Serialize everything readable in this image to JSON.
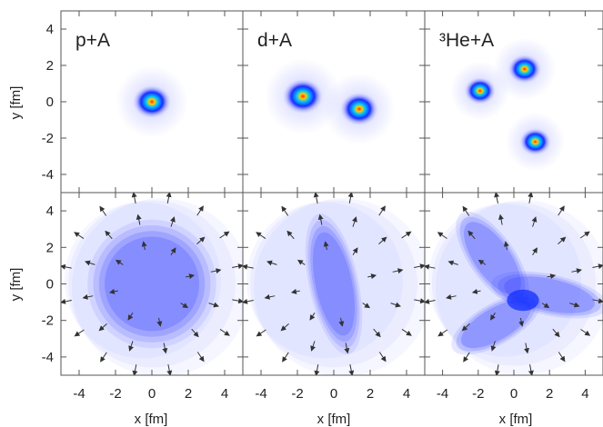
{
  "figure": {
    "shared": {
      "xlabel": "x [fm]",
      "ylabel": "y [fm]",
      "ticks": [
        -4,
        -2,
        0,
        2,
        4
      ],
      "xlim": [
        -5,
        5
      ],
      "ylim": [
        -5,
        5
      ]
    },
    "colors": {
      "frame": "#444444",
      "blob_core": "#ff3020",
      "blob_mid": "#00a0ff",
      "blob_outer": "#1a2cff",
      "hydro_fill": "#2f3cff",
      "arrow": "#333333"
    }
  },
  "chart_data": [
    {
      "type": "heatmap",
      "panel": "top-left",
      "title": "p+A",
      "blobs": [
        {
          "x": 0.0,
          "y": 0.0,
          "r": 0.9
        }
      ]
    },
    {
      "type": "heatmap",
      "panel": "top-middle",
      "title": "d+A",
      "blobs": [
        {
          "x": -1.7,
          "y": 0.3,
          "r": 0.95
        },
        {
          "x": 1.4,
          "y": -0.4,
          "r": 0.9
        }
      ]
    },
    {
      "type": "heatmap",
      "panel": "top-right",
      "title": "³He+A",
      "blobs": [
        {
          "x": -1.9,
          "y": 0.6,
          "r": 0.75
        },
        {
          "x": 0.6,
          "y": 1.8,
          "r": 0.8
        },
        {
          "x": 1.2,
          "y": -2.2,
          "r": 0.75
        }
      ]
    },
    {
      "type": "heatmap",
      "panel": "bottom-left",
      "shape": "circle",
      "hydro": {
        "rx": 2.6,
        "ry": 2.6,
        "angle": 0
      },
      "flow_arrows": "radial"
    },
    {
      "type": "heatmap",
      "panel": "bottom-middle",
      "shape": "ellipse",
      "hydro": {
        "rx": 1.0,
        "ry": 2.9,
        "angle": -12
      },
      "flow_arrows": "radial"
    },
    {
      "type": "heatmap",
      "panel": "bottom-right",
      "shape": "triangle",
      "hydro_lobes": [
        {
          "cx": -1.2,
          "cy": 1.4,
          "rx": 1.0,
          "ry": 2.4,
          "angle": -35
        },
        {
          "cx": 2.0,
          "cy": -0.6,
          "rx": 2.6,
          "ry": 0.9,
          "angle": 12
        },
        {
          "cx": -1.0,
          "cy": -2.2,
          "rx": 2.2,
          "ry": 0.9,
          "angle": -30
        }
      ],
      "flow_arrows": "radial"
    }
  ]
}
